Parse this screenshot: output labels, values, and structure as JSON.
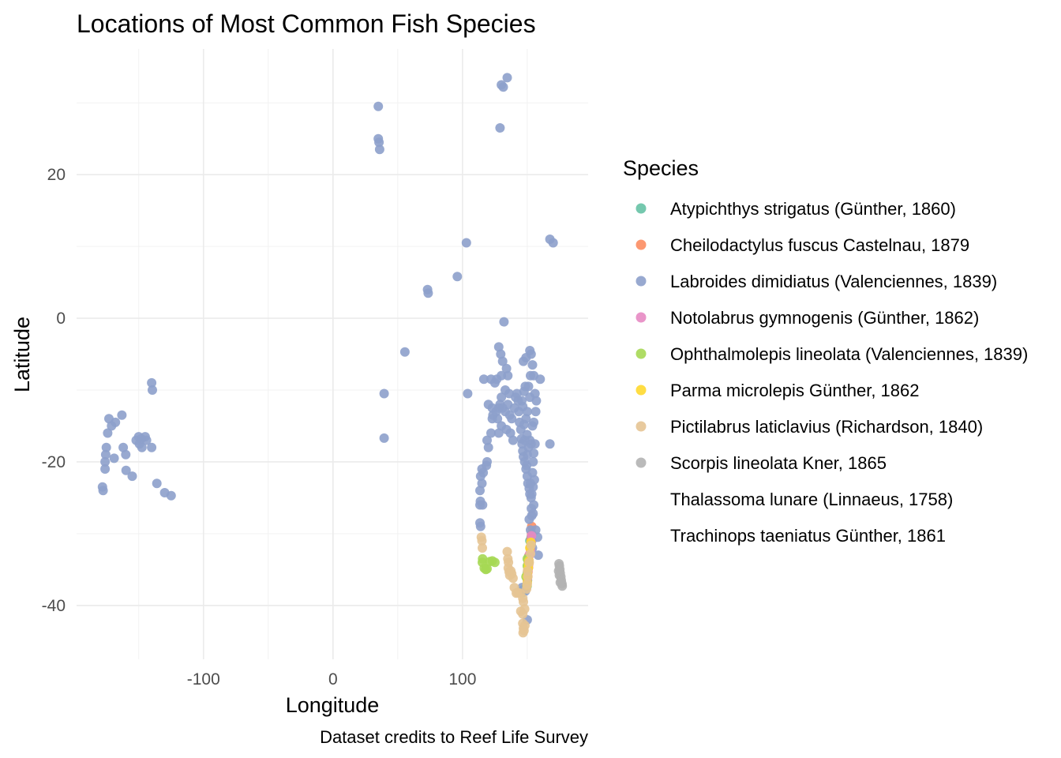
{
  "chart_data": {
    "type": "scatter",
    "title": "Locations of Most Common Fish Species",
    "xlabel": "Longitude",
    "ylabel": "Latitude",
    "caption": "Dataset credits to Reef Life Survey",
    "xlim": [
      -198,
      197
    ],
    "ylim": [
      -47.5,
      37.5
    ],
    "x_ticks": [
      -100,
      0,
      100
    ],
    "y_ticks": [
      20,
      0,
      -20,
      -40
    ],
    "grid": true,
    "legend": {
      "title": "Species",
      "placement": "right"
    },
    "series": [
      {
        "name": "Atypichthys strigatus (Günther, 1860)",
        "color": "#66c2a5",
        "points": [
          [
            153,
            -30.5
          ],
          [
            153,
            -31.5
          ],
          [
            152.5,
            -32
          ],
          [
            151.3,
            -33.8
          ],
          [
            150.8,
            -34.8
          ],
          [
            150,
            -35.5
          ],
          [
            150.2,
            -36.5
          ],
          [
            149.9,
            -37.3
          ],
          [
            147,
            -37.8
          ],
          [
            146.5,
            -38.2
          ],
          [
            151,
            -33.2
          ],
          [
            152,
            -31
          ]
        ]
      },
      {
        "name": "Cheilodactylus fuscus Castelnau, 1879",
        "color": "#fc8d62",
        "points": [
          [
            153.5,
            -29
          ],
          [
            153.3,
            -30
          ],
          [
            153,
            -30.8
          ],
          [
            152.3,
            -31.9
          ],
          [
            151.5,
            -33
          ],
          [
            151.2,
            -33.9
          ],
          [
            151,
            -34.3
          ],
          [
            150.5,
            -35
          ],
          [
            150.2,
            -35.7
          ],
          [
            150,
            -36.2
          ]
        ]
      },
      {
        "name": "Labroides dimidiatus (Valenciennes, 1839)",
        "color": "#8da0cb",
        "points": [
          [
            -178,
            -23.5
          ],
          [
            -177.5,
            -24
          ],
          [
            -176,
            -20
          ],
          [
            -176,
            -21
          ],
          [
            -175.5,
            -19
          ],
          [
            -175,
            -18
          ],
          [
            -174,
            -16
          ],
          [
            -173,
            -14
          ],
          [
            -171,
            -15
          ],
          [
            -169,
            -19.5
          ],
          [
            -168,
            -14.5
          ],
          [
            -163,
            -13.5
          ],
          [
            -162,
            -18
          ],
          [
            -160,
            -19
          ],
          [
            -159.8,
            -21.2
          ],
          [
            -155,
            -22
          ],
          [
            -152,
            -17
          ],
          [
            -150,
            -16.5
          ],
          [
            -149.5,
            -17.5
          ],
          [
            -148,
            -16.8
          ],
          [
            -147.5,
            -18
          ],
          [
            -145,
            -16.5
          ],
          [
            -144,
            -17
          ],
          [
            -140,
            -9
          ],
          [
            -139.5,
            -10
          ],
          [
            -140,
            -18
          ],
          [
            -136,
            -23
          ],
          [
            -130,
            -24.3
          ],
          [
            -125,
            -24.7
          ],
          [
            35,
            29.5
          ],
          [
            35,
            25
          ],
          [
            35.5,
            24.5
          ],
          [
            36,
            23.5
          ],
          [
            39.5,
            -10.5
          ],
          [
            39.5,
            -16.7
          ],
          [
            55.5,
            -4.7
          ],
          [
            73,
            4
          ],
          [
            73.5,
            3.5
          ],
          [
            96,
            5.8
          ],
          [
            103,
            10.5
          ],
          [
            104,
            -10.5
          ],
          [
            115,
            -21
          ],
          [
            114,
            -22
          ],
          [
            113.5,
            -24
          ],
          [
            113.8,
            -25.5
          ],
          [
            113.5,
            -26
          ],
          [
            113.5,
            -28.5
          ],
          [
            114,
            -29
          ],
          [
            119,
            -17
          ],
          [
            120,
            -18
          ],
          [
            119,
            -20
          ],
          [
            118.5,
            -20.5
          ],
          [
            116,
            -21.5
          ],
          [
            115,
            -23
          ],
          [
            115.5,
            -26
          ],
          [
            123,
            -12.5
          ],
          [
            123.5,
            -13.5
          ],
          [
            123,
            -14
          ],
          [
            122,
            -16
          ],
          [
            120,
            -12
          ],
          [
            116.5,
            -8.5
          ],
          [
            122,
            -8.5
          ],
          [
            125,
            -9
          ],
          [
            126.5,
            -8.5
          ],
          [
            129,
            -12
          ],
          [
            128,
            -12.5
          ],
          [
            130,
            -11
          ],
          [
            131,
            -12.5
          ],
          [
            127,
            -14
          ],
          [
            130,
            -15
          ],
          [
            128,
            -16
          ],
          [
            126,
            -13
          ],
          [
            128,
            -4
          ],
          [
            129.5,
            -5
          ],
          [
            131,
            -6
          ],
          [
            132,
            -0.5
          ],
          [
            134,
            -7
          ],
          [
            135,
            -8
          ],
          [
            136,
            -10.5
          ],
          [
            133,
            -10
          ],
          [
            130,
            -8
          ],
          [
            129,
            26.5
          ],
          [
            130,
            32.5
          ],
          [
            131.5,
            32.2
          ],
          [
            134.5,
            33.5
          ],
          [
            167.5,
            11
          ],
          [
            170,
            10.5
          ],
          [
            155,
            -8
          ],
          [
            133,
            -13
          ],
          [
            134,
            -15.5
          ],
          [
            135,
            -12
          ],
          [
            136.5,
            -13.5
          ],
          [
            137,
            -16
          ],
          [
            138,
            -14
          ],
          [
            139,
            -17
          ],
          [
            140,
            -12.5
          ],
          [
            141,
            -11
          ],
          [
            142,
            -10.5
          ],
          [
            143,
            -11.5
          ],
          [
            143.5,
            -13
          ],
          [
            144,
            -14.5
          ],
          [
            145,
            -15.5
          ],
          [
            145.5,
            -16.8
          ],
          [
            146,
            -17.5
          ],
          [
            146.5,
            -18.5
          ],
          [
            147,
            -19.3
          ],
          [
            148,
            -20
          ],
          [
            149,
            -21
          ],
          [
            149.5,
            -20.5
          ],
          [
            150,
            -22
          ],
          [
            150.5,
            -23
          ],
          [
            151.5,
            -23.7
          ],
          [
            152,
            -24.5
          ],
          [
            152.5,
            -23
          ],
          [
            153,
            -25
          ],
          [
            153.2,
            -26.5
          ],
          [
            153.5,
            -27.5
          ],
          [
            151,
            -18
          ],
          [
            150,
            -19
          ],
          [
            152,
            -17
          ],
          [
            153,
            -17.5
          ],
          [
            148,
            -17
          ],
          [
            149.8,
            -16.2
          ],
          [
            150,
            -13
          ],
          [
            149,
            -14
          ],
          [
            147.5,
            -14.8
          ],
          [
            145.8,
            -11.5
          ],
          [
            146.5,
            -12.3
          ],
          [
            147.5,
            -10.2
          ],
          [
            148.5,
            -9.5
          ],
          [
            147,
            -6
          ],
          [
            149,
            -5.5
          ],
          [
            152,
            -4.5
          ],
          [
            153,
            -5
          ],
          [
            154,
            -6.5
          ],
          [
            152.5,
            -8
          ],
          [
            151,
            -9.5
          ],
          [
            152,
            -11
          ],
          [
            156,
            -10.5
          ],
          [
            157,
            -11.5
          ],
          [
            156.5,
            -13
          ],
          [
            155,
            -14.5
          ],
          [
            154,
            -15
          ],
          [
            156,
            -17.5
          ],
          [
            155,
            -18.8
          ],
          [
            154.5,
            -20
          ],
          [
            154,
            -21.5
          ],
          [
            155.5,
            -22.5
          ],
          [
            154.5,
            -23.5
          ],
          [
            153.5,
            -24.5
          ],
          [
            155,
            -26
          ],
          [
            154.5,
            -27.2
          ],
          [
            156.5,
            -29.5
          ],
          [
            158,
            -30.5
          ],
          [
            158.5,
            -33
          ],
          [
            151.5,
            -28
          ],
          [
            152.5,
            -29.5
          ],
          [
            153.5,
            -31
          ],
          [
            154,
            -32
          ],
          [
            146,
            -37.5
          ],
          [
            148.5,
            -38
          ],
          [
            150,
            -42
          ],
          [
            167.5,
            -17.5
          ],
          [
            160,
            -8.5
          ]
        ]
      },
      {
        "name": "Notolabrus gymnogenis (Günther, 1862)",
        "color": "#e78ac3",
        "points": [
          [
            153.3,
            -30.3
          ],
          [
            153,
            -31.2
          ],
          [
            152.5,
            -32.3
          ],
          [
            151.8,
            -33
          ],
          [
            151.3,
            -33.8
          ],
          [
            151,
            -34.7
          ],
          [
            150.6,
            -35.3
          ],
          [
            150.3,
            -35.9
          ],
          [
            150,
            -36.4
          ],
          [
            151.2,
            -34.2
          ],
          [
            150.8,
            -34
          ],
          [
            152,
            -32.8
          ]
        ]
      },
      {
        "name": "Ophthalmolepis lineolata (Valenciennes, 1839)",
        "color": "#a6d854",
        "points": [
          [
            115.5,
            -33.5
          ],
          [
            115.3,
            -34
          ],
          [
            116.8,
            -34.8
          ],
          [
            118,
            -35
          ],
          [
            119,
            -34.9
          ],
          [
            121,
            -33.9
          ],
          [
            123,
            -33.8
          ],
          [
            125,
            -34
          ],
          [
            150,
            -33.5
          ],
          [
            150,
            -34.5
          ],
          [
            149,
            -36
          ]
        ]
      },
      {
        "name": "Parma microlepis Günther, 1862",
        "color": "#ffd92f",
        "points": [
          [
            151.3,
            -33.8
          ],
          [
            151.1,
            -34.2
          ],
          [
            150.8,
            -34.8
          ],
          [
            150.3,
            -35.4
          ],
          [
            150.1,
            -36
          ],
          [
            150,
            -36.8
          ],
          [
            149.8,
            -37.2
          ],
          [
            152,
            -32
          ],
          [
            152.8,
            -31.2
          ]
        ]
      },
      {
        "name": "Pictilabrus laticlavius (Richardson, 1840)",
        "color": "#e5c494",
        "points": [
          [
            114.5,
            -30.5
          ],
          [
            115,
            -31
          ],
          [
            115.3,
            -32
          ],
          [
            134.5,
            -32.5
          ],
          [
            135,
            -33.5
          ],
          [
            135.5,
            -34
          ],
          [
            135.3,
            -34.8
          ],
          [
            136,
            -35.3
          ],
          [
            136.5,
            -35.8
          ],
          [
            137.3,
            -35.2
          ],
          [
            138,
            -35.6
          ],
          [
            139,
            -36.2
          ],
          [
            140,
            -37.5
          ],
          [
            141.5,
            -38.3
          ],
          [
            142.5,
            -38.2
          ],
          [
            144.5,
            -38.3
          ],
          [
            146.5,
            -39
          ],
          [
            147,
            -39.5
          ],
          [
            145,
            -40.8
          ],
          [
            146.5,
            -41.2
          ],
          [
            148,
            -40.5
          ],
          [
            146.5,
            -42.5
          ],
          [
            147,
            -43.2
          ],
          [
            147.5,
            -43.5
          ],
          [
            146.8,
            -43.8
          ],
          [
            148.2,
            -42.8
          ],
          [
            150,
            -37
          ],
          [
            150.5,
            -36
          ],
          [
            151.5,
            -34
          ],
          [
            152.5,
            -32.8
          ],
          [
            153,
            -31.6
          ],
          [
            150.2,
            -35.2
          ],
          [
            149.5,
            -37.7
          ]
        ]
      },
      {
        "name": "Scorpis lineolata Kner, 1865",
        "color": "#b3b3b3",
        "points": [
          [
            174.5,
            -34.2
          ],
          [
            174.8,
            -34.5
          ],
          [
            175.2,
            -35
          ],
          [
            175.5,
            -35.5
          ],
          [
            174.8,
            -35.8
          ],
          [
            176,
            -36
          ],
          [
            176.3,
            -36.5
          ],
          [
            176.8,
            -37
          ],
          [
            177,
            -37.3
          ],
          [
            175.5,
            -36.8
          ],
          [
            174.2,
            -35.2
          ]
        ]
      },
      {
        "name": "Thalassoma lunare (Linnaeus, 1758)",
        "color": "#ffffff",
        "points": []
      },
      {
        "name": "Trachinops taeniatus Günther, 1861",
        "color": "#ffffff",
        "points": []
      }
    ]
  }
}
